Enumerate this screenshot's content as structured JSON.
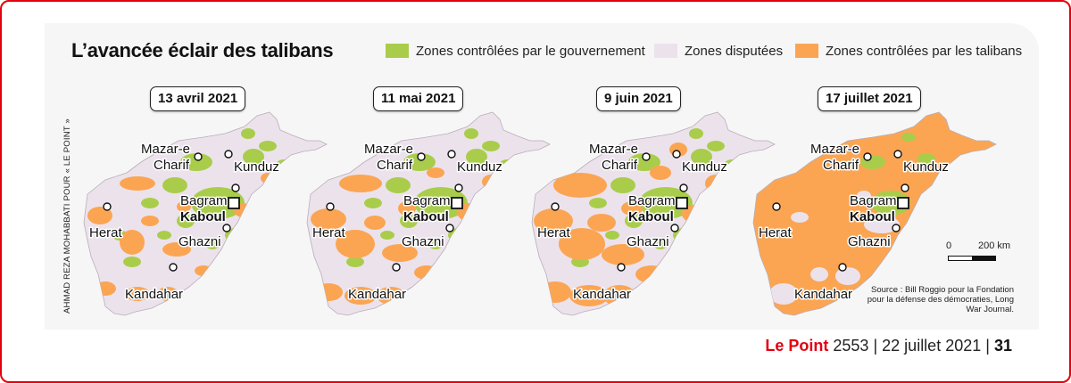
{
  "title": "L’avancée éclair des talibans",
  "credit": "AHMAD REZA MOHABBATI POUR « LE POINT »",
  "colors": {
    "government": "#a9cd4b",
    "disputed": "#ece2ec",
    "taliban": "#fba553",
    "accent": "#e3000f"
  },
  "legend": [
    {
      "label": "Zones contrôlées par le gouvernement",
      "color": "#a9cd4b"
    },
    {
      "label": "Zones disputées",
      "color": "#ece2ec"
    },
    {
      "label": "Zones contrôlées par les talibans",
      "color": "#fba553"
    }
  ],
  "maps": [
    {
      "date": "13 avril 2021"
    },
    {
      "date": "11 mai 2021"
    },
    {
      "date": "9 juin 2021"
    },
    {
      "date": "17 juillet 2021"
    }
  ],
  "cities": {
    "mazar_1": "Mazar-e",
    "mazar_2": "Charif",
    "kunduz": "Kunduz",
    "bagram": "Bagram",
    "kaboul": "Kaboul",
    "herat": "Herat",
    "ghazni": "Ghazni",
    "kandahar": "Kandahar"
  },
  "scale": {
    "start": "0",
    "end": "200 km"
  },
  "source": "Source : Bill Roggio pour la Fondation pour la défense des démocraties, Long War Journal.",
  "footer": {
    "brand": "Le Point",
    "issue": "2553",
    "date": "22 juillet 2021",
    "sep": "|",
    "page": "31"
  }
}
